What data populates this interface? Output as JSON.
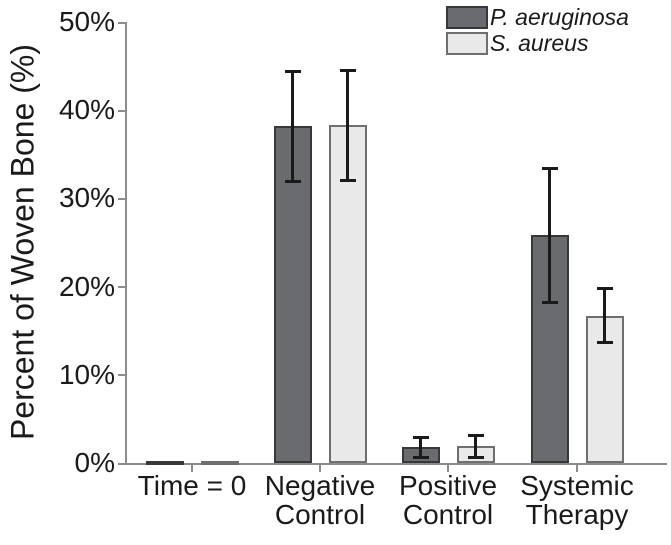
{
  "figure": {
    "background": "#ffffff",
    "axis_color": "#8c8c8c",
    "text_color": "#1a1a1a"
  },
  "chart_data": {
    "type": "bar",
    "title": "",
    "xlabel": "",
    "ylabel": "Percent of Woven Bone (%)",
    "ylim": [
      0,
      50
    ],
    "ytick_step": 10,
    "yticks": [
      "0%",
      "10%",
      "20%",
      "30%",
      "40%",
      "50%"
    ],
    "categories": [
      "Time = 0",
      "Negative Control",
      "Positive Control",
      "Systemic Therapy"
    ],
    "categories_wrapped": [
      [
        "Time = 0"
      ],
      [
        "Negative",
        "Control"
      ],
      [
        "Positive",
        "Control"
      ],
      [
        "Systemic",
        "Therapy"
      ]
    ],
    "grid": false,
    "legend_position": "top-right",
    "error_bar_color": "#1a1a1a",
    "series": [
      {
        "name": "P. aeruginosa",
        "fill": "#696b6e",
        "border": "#37383a",
        "values": [
          0.2,
          38.2,
          1.8,
          25.8
        ],
        "errors": [
          0,
          6.3,
          1.2,
          7.7
        ]
      },
      {
        "name": "S. aureus",
        "fill": "#e9e9e9",
        "border": "#6e6f71",
        "values": [
          0.2,
          38.3,
          1.9,
          16.7
        ],
        "errors": [
          0,
          6.3,
          1.3,
          3.1
        ]
      }
    ]
  }
}
